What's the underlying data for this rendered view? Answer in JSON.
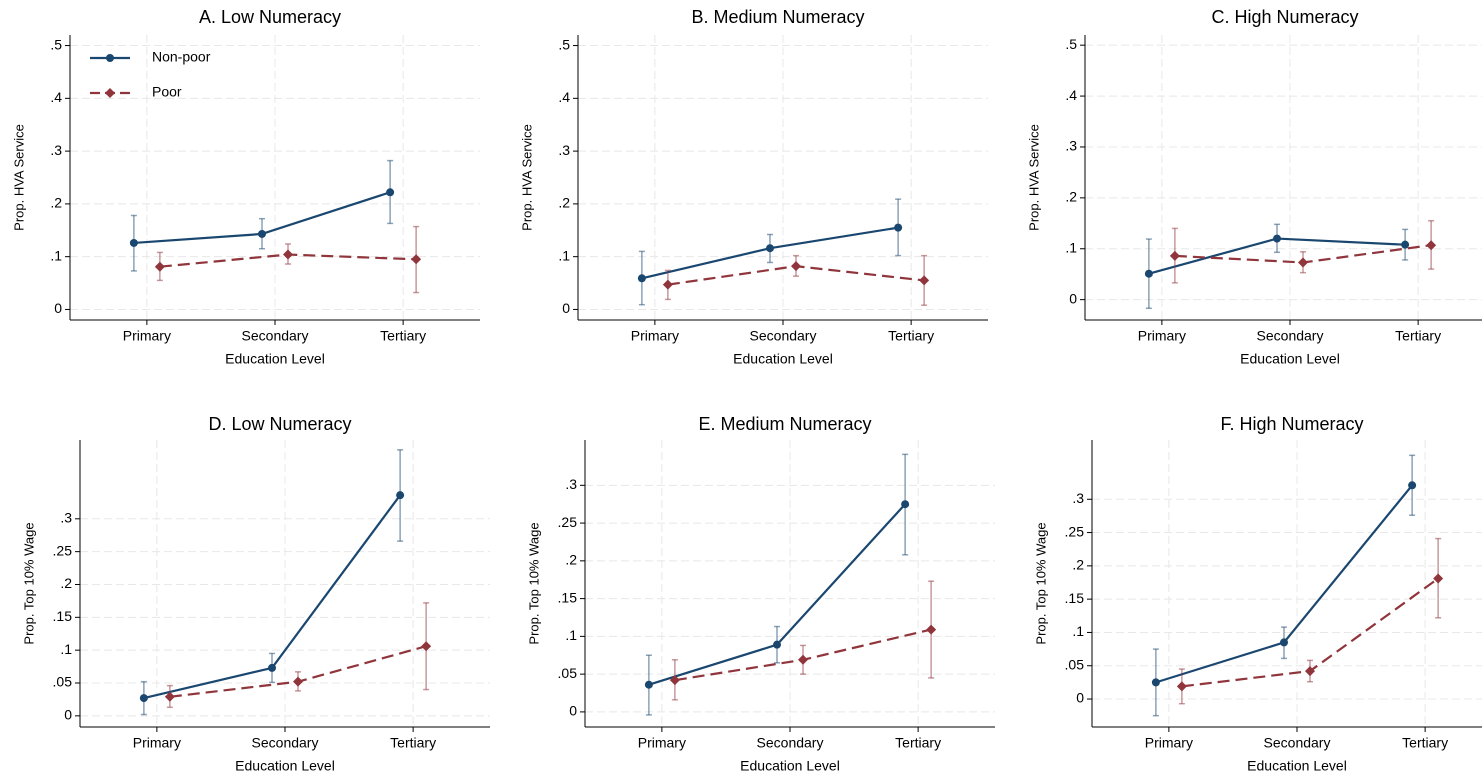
{
  "chart_data": [
    {
      "type": "line",
      "title": "A. Low Numeracy",
      "xlabel": "Education Level",
      "ylabel": "Prop. HVA Service",
      "categories": [
        "Primary",
        "Secondary",
        "Tertiary"
      ],
      "legend": "upper left",
      "grid": true,
      "ylim": [
        -0.02,
        0.52
      ],
      "yticks": [
        0,
        {
          "value": 0.1,
          "label": ".1"
        },
        {
          "value": 0.2,
          "label": ".2"
        },
        {
          "value": 0.3,
          "label": ".3"
        },
        {
          "value": 0.4,
          "label": ".4"
        },
        {
          "value": 0.5,
          "label": ".5"
        }
      ],
      "series": [
        {
          "name": "Non-poor",
          "color": "#1a476f",
          "marker": "circle",
          "linestyle": "solid",
          "values": [
            0.126,
            0.143,
            0.222
          ],
          "lower": [
            0.073,
            0.115,
            0.163
          ],
          "upper": [
            0.178,
            0.172,
            0.282
          ]
        },
        {
          "name": "Poor",
          "color": "#90353b",
          "marker": "diamond",
          "linestyle": "dashed",
          "values": [
            0.081,
            0.104,
            0.095
          ],
          "lower": [
            0.055,
            0.086,
            0.032
          ],
          "upper": [
            0.108,
            0.124,
            0.157
          ]
        }
      ]
    },
    {
      "type": "line",
      "title": "B. Medium Numeracy",
      "xlabel": "Education Level",
      "ylabel": "Prop. HVA Service",
      "categories": [
        "Primary",
        "Secondary",
        "Tertiary"
      ],
      "grid": true,
      "ylim": [
        -0.02,
        0.52
      ],
      "yticks": [
        0,
        {
          "value": 0.1,
          "label": ".1"
        },
        {
          "value": 0.2,
          "label": ".2"
        },
        {
          "value": 0.3,
          "label": ".3"
        },
        {
          "value": 0.4,
          "label": ".4"
        },
        {
          "value": 0.5,
          "label": ".5"
        }
      ],
      "series": [
        {
          "color": "#1a476f",
          "marker": "circle",
          "linestyle": "solid",
          "values": [
            0.059,
            0.116,
            0.155
          ],
          "lower": [
            0.009,
            0.089,
            0.102
          ],
          "upper": [
            0.11,
            0.142,
            0.209
          ]
        },
        {
          "color": "#90353b",
          "marker": "diamond",
          "linestyle": "dashed",
          "values": [
            0.047,
            0.082,
            0.055
          ],
          "lower": [
            0.019,
            0.063,
            0.008
          ],
          "upper": [
            0.074,
            0.102,
            0.102
          ]
        }
      ]
    },
    {
      "type": "line",
      "title": "C. High Numeracy",
      "xlabel": "Education Level",
      "ylabel": "Prop. HVA Service",
      "categories": [
        "Primary",
        "Secondary",
        "Tertiary"
      ],
      "grid": true,
      "ylim": [
        -0.04,
        0.52
      ],
      "yticks": [
        0,
        {
          "value": 0.1,
          "label": ".1"
        },
        {
          "value": 0.2,
          "label": ".2"
        },
        {
          "value": 0.3,
          "label": ".3"
        },
        {
          "value": 0.4,
          "label": ".4"
        },
        {
          "value": 0.5,
          "label": ".5"
        }
      ],
      "series": [
        {
          "color": "#1a476f",
          "marker": "circle",
          "linestyle": "solid",
          "values": [
            0.051,
            0.12,
            0.108
          ],
          "lower": [
            -0.017,
            0.093,
            0.078
          ],
          "upper": [
            0.119,
            0.148,
            0.138
          ]
        },
        {
          "color": "#90353b",
          "marker": "diamond",
          "linestyle": "dashed",
          "values": [
            0.086,
            0.073,
            0.107
          ],
          "lower": [
            0.033,
            0.053,
            0.06
          ],
          "upper": [
            0.14,
            0.094,
            0.155
          ]
        }
      ]
    },
    {
      "type": "line",
      "title": "D. Low Numeracy",
      "xlabel": "Education Level",
      "ylabel": "Prop. Top 10% Wage",
      "categories": [
        "Primary",
        "Secondary",
        "Tertiary"
      ],
      "grid": true,
      "ylim": [
        -0.017,
        0.42
      ],
      "yticks": [
        0,
        {
          "value": 0.05,
          "label": ".05"
        },
        {
          "value": 0.1,
          "label": ".1"
        },
        {
          "value": 0.15,
          "label": ".15"
        },
        {
          "value": 0.2,
          "label": ".2"
        },
        {
          "value": 0.25,
          "label": ".25"
        },
        {
          "value": 0.3,
          "label": ".3"
        }
      ],
      "series": [
        {
          "color": "#1a476f",
          "marker": "circle",
          "linestyle": "solid",
          "values": [
            0.027,
            0.073,
            0.336
          ],
          "lower": [
            0.002,
            0.051,
            0.266
          ],
          "upper": [
            0.052,
            0.095,
            0.405
          ]
        },
        {
          "color": "#90353b",
          "marker": "diamond",
          "linestyle": "dashed",
          "values": [
            0.029,
            0.052,
            0.106
          ],
          "lower": [
            0.013,
            0.038,
            0.04
          ],
          "upper": [
            0.046,
            0.067,
            0.172
          ]
        }
      ]
    },
    {
      "type": "line",
      "title": "E. Medium Numeracy",
      "xlabel": "Education Level",
      "ylabel": "Prop. Top 10% Wage",
      "categories": [
        "Primary",
        "Secondary",
        "Tertiary"
      ],
      "grid": true,
      "ylim": [
        -0.02,
        0.36
      ],
      "yticks": [
        0,
        {
          "value": 0.05,
          "label": ".05"
        },
        {
          "value": 0.1,
          "label": ".1"
        },
        {
          "value": 0.15,
          "label": ".15"
        },
        {
          "value": 0.2,
          "label": ".2"
        },
        {
          "value": 0.25,
          "label": ".25"
        },
        {
          "value": 0.3,
          "label": ".3"
        }
      ],
      "series": [
        {
          "color": "#1a476f",
          "marker": "circle",
          "linestyle": "solid",
          "values": [
            0.036,
            0.089,
            0.275
          ],
          "lower": [
            -0.004,
            0.065,
            0.208
          ],
          "upper": [
            0.075,
            0.113,
            0.341
          ]
        },
        {
          "color": "#90353b",
          "marker": "diamond",
          "linestyle": "dashed",
          "values": [
            0.042,
            0.069,
            0.109
          ],
          "lower": [
            0.016,
            0.05,
            0.045
          ],
          "upper": [
            0.069,
            0.088,
            0.173
          ]
        }
      ]
    },
    {
      "type": "line",
      "title": "F. High Numeracy",
      "xlabel": "Education Level",
      "ylabel": "Prop. Top 10% Wage",
      "categories": [
        "Primary",
        "Secondary",
        "Tertiary"
      ],
      "grid": true,
      "ylim": [
        -0.042,
        0.389
      ],
      "yticks": [
        0,
        {
          "value": 0.05,
          "label": ".05"
        },
        {
          "value": 0.1,
          "label": ".1"
        },
        {
          "value": 0.15,
          "label": ".15"
        },
        {
          "value": 0.2,
          "label": ".2"
        },
        {
          "value": 0.25,
          "label": ".25"
        },
        {
          "value": 0.3,
          "label": ".3"
        }
      ],
      "series": [
        {
          "color": "#1a476f",
          "marker": "circle",
          "linestyle": "solid",
          "values": [
            0.025,
            0.085,
            0.321
          ],
          "lower": [
            -0.025,
            0.061,
            0.276
          ],
          "upper": [
            0.075,
            0.108,
            0.366
          ]
        },
        {
          "color": "#90353b",
          "marker": "diamond",
          "linestyle": "dashed",
          "values": [
            0.019,
            0.042,
            0.181
          ],
          "lower": [
            -0.007,
            0.026,
            0.122
          ],
          "upper": [
            0.045,
            0.058,
            0.241
          ]
        }
      ]
    }
  ]
}
